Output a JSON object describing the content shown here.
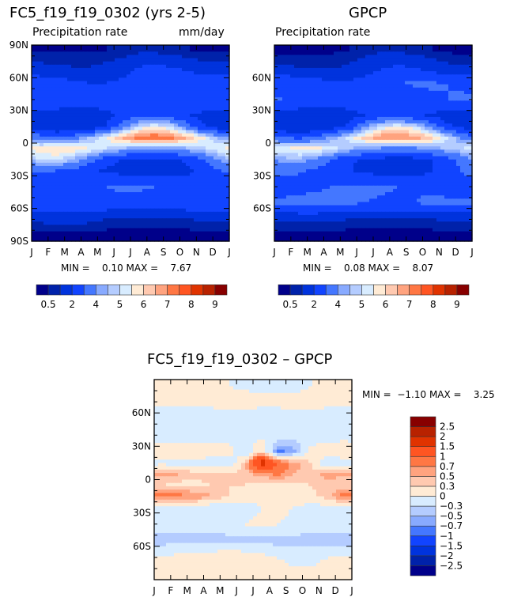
{
  "chart_data": [
    {
      "type": "heatmap",
      "title": "FC5_f19_f19_0302 (yrs 2-5)",
      "subtitle_left": "Precipitation rate",
      "subtitle_right": "mm/day",
      "stats": "MIN =    0.10 MAX =    7.67",
      "x_ticks": [
        "J",
        "F",
        "M",
        "A",
        "M",
        "J",
        "J",
        "A",
        "S",
        "O",
        "N",
        "D",
        "J"
      ],
      "y_ticks": [
        {
          "v": 90,
          "l": "90N"
        },
        {
          "v": 60,
          "l": "60N"
        },
        {
          "v": 30,
          "l": "30N"
        },
        {
          "v": 0,
          "l": "0"
        },
        {
          "v": -30,
          "l": "30S"
        },
        {
          "v": -60,
          "l": "60S"
        },
        {
          "v": -90,
          "l": "90S"
        }
      ],
      "ylim": [
        -90,
        90
      ],
      "levels": [
        0.5,
        1,
        2,
        3,
        4,
        4.5,
        5,
        5.5,
        6,
        6.5,
        7,
        7.5,
        8,
        8.5,
        9
      ],
      "colorbar_labels": [
        "0.5",
        "2",
        "4",
        "5",
        "6",
        "7",
        "8",
        "9"
      ],
      "lats": [
        85,
        70,
        55,
        40,
        25,
        15,
        5,
        -5,
        -15,
        -25,
        -40,
        -55,
        -70,
        -85
      ],
      "values": [
        [
          0.4,
          0.4,
          0.4,
          0.4,
          0.5,
          0.6,
          0.8,
          0.8,
          0.6,
          0.5,
          0.4,
          0.4
        ],
        [
          1.2,
          1.1,
          1.0,
          1.0,
          1.2,
          1.5,
          2.0,
          2.2,
          2.0,
          1.6,
          1.3,
          1.2
        ],
        [
          2.6,
          2.4,
          2.2,
          2.0,
          2.0,
          2.2,
          2.6,
          2.8,
          3.0,
          3.0,
          2.8,
          2.7
        ],
        [
          2.8,
          2.7,
          2.6,
          2.5,
          2.4,
          2.2,
          2.2,
          2.3,
          2.4,
          2.6,
          2.8,
          2.9
        ],
        [
          1.6,
          1.5,
          1.4,
          1.5,
          1.8,
          2.2,
          2.8,
          3.0,
          2.6,
          2.0,
          1.7,
          1.6
        ],
        [
          1.2,
          1.0,
          1.0,
          1.3,
          2.0,
          3.5,
          5.0,
          5.5,
          5.0,
          3.5,
          2.0,
          1.5
        ],
        [
          3.5,
          3.2,
          3.5,
          4.5,
          5.5,
          6.5,
          7.5,
          7.6,
          7.2,
          6.5,
          5.5,
          4.2
        ],
        [
          5.8,
          6.0,
          6.0,
          5.5,
          5.0,
          4.5,
          4.0,
          3.8,
          4.0,
          4.5,
          5.0,
          5.5
        ],
        [
          5.0,
          5.2,
          4.5,
          3.5,
          2.5,
          2.0,
          1.8,
          1.7,
          1.8,
          2.2,
          3.0,
          4.2
        ],
        [
          3.2,
          3.0,
          2.8,
          2.2,
          1.8,
          1.6,
          1.5,
          1.5,
          1.5,
          1.8,
          2.4,
          3.0
        ],
        [
          2.4,
          2.4,
          2.6,
          2.8,
          3.0,
          3.2,
          3.2,
          3.0,
          2.8,
          2.6,
          2.4,
          2.4
        ],
        [
          2.8,
          3.0,
          3.0,
          3.0,
          2.8,
          2.6,
          2.5,
          2.5,
          2.6,
          2.8,
          2.8,
          2.8
        ],
        [
          1.2,
          1.3,
          1.3,
          1.2,
          1.0,
          0.9,
          0.9,
          0.9,
          0.9,
          1.0,
          1.1,
          1.2
        ],
        [
          0.3,
          0.3,
          0.3,
          0.3,
          0.2,
          0.2,
          0.2,
          0.2,
          0.2,
          0.2,
          0.3,
          0.3
        ]
      ]
    },
    {
      "type": "heatmap",
      "title": "GPCP",
      "subtitle_left": "Precipitation rate",
      "stats": "MIN =    0.08 MAX =    8.07",
      "x_ticks": [
        "J",
        "F",
        "M",
        "A",
        "M",
        "J",
        "J",
        "A",
        "S",
        "O",
        "N",
        "D",
        "J"
      ],
      "y_ticks": [
        {
          "v": 60,
          "l": "60N"
        },
        {
          "v": 30,
          "l": "30N"
        },
        {
          "v": 0,
          "l": "0"
        },
        {
          "v": -30,
          "l": "30S"
        },
        {
          "v": -60,
          "l": "60S"
        }
      ],
      "ylim": [
        -90,
        90
      ],
      "levels": [
        0.5,
        1,
        2,
        3,
        4,
        4.5,
        5,
        5.5,
        6,
        6.5,
        7,
        7.5,
        8,
        8.5,
        9
      ],
      "colorbar_labels": [
        "0.5",
        "2",
        "4",
        "5",
        "6",
        "7",
        "8",
        "9"
      ],
      "lats": [
        85,
        70,
        55,
        40,
        25,
        15,
        5,
        -5,
        -15,
        -25,
        -40,
        -55,
        -70,
        -85
      ],
      "values": [
        [
          0.3,
          0.3,
          0.3,
          0.4,
          0.5,
          0.7,
          0.9,
          0.9,
          0.7,
          0.5,
          0.4,
          0.3
        ],
        [
          1.1,
          1.0,
          0.9,
          0.9,
          1.1,
          1.4,
          1.9,
          2.1,
          1.9,
          1.5,
          1.2,
          1.1
        ],
        [
          2.8,
          2.6,
          2.4,
          2.2,
          2.2,
          2.4,
          2.8,
          3.0,
          3.1,
          3.1,
          3.0,
          2.9
        ],
        [
          3.0,
          2.9,
          2.8,
          2.7,
          2.6,
          2.4,
          2.3,
          2.4,
          2.6,
          2.9,
          3.0,
          3.1
        ],
        [
          1.4,
          1.3,
          1.2,
          1.3,
          1.6,
          2.0,
          2.4,
          2.5,
          2.2,
          1.8,
          1.5,
          1.4
        ],
        [
          1.3,
          1.1,
          1.1,
          1.5,
          2.3,
          3.8,
          5.2,
          5.5,
          5.2,
          3.8,
          2.3,
          1.6
        ],
        [
          3.0,
          2.8,
          3.2,
          4.2,
          5.2,
          6.2,
          7.0,
          7.0,
          6.8,
          6.2,
          5.0,
          3.8
        ],
        [
          5.5,
          5.8,
          5.8,
          5.2,
          4.6,
          4.2,
          3.8,
          3.7,
          3.8,
          4.2,
          4.6,
          5.1
        ],
        [
          4.3,
          4.4,
          3.8,
          3.0,
          2.2,
          1.8,
          1.7,
          1.6,
          1.7,
          2.0,
          2.6,
          3.5
        ],
        [
          3.3,
          3.1,
          2.9,
          2.4,
          2.0,
          1.8,
          1.5,
          1.4,
          1.5,
          1.9,
          2.5,
          3.1
        ],
        [
          2.6,
          2.6,
          2.8,
          3.0,
          3.1,
          3.2,
          3.1,
          3.0,
          2.9,
          2.8,
          2.6,
          2.6
        ],
        [
          3.2,
          3.4,
          3.4,
          3.4,
          3.2,
          3.0,
          2.9,
          2.9,
          3.0,
          3.2,
          3.2,
          3.2
        ],
        [
          1.2,
          1.2,
          1.2,
          1.1,
          1.0,
          0.9,
          0.9,
          0.9,
          0.9,
          1.0,
          1.1,
          1.2
        ],
        [
          0.2,
          0.2,
          0.2,
          0.2,
          0.2,
          0.2,
          0.2,
          0.2,
          0.2,
          0.2,
          0.2,
          0.2
        ]
      ]
    },
    {
      "type": "heatmap",
      "title": "FC5_f19_f19_0302 – GPCP",
      "stats": "MIN =  −1.10 MAX =    3.25",
      "x_ticks": [
        "J",
        "F",
        "M",
        "A",
        "M",
        "J",
        "J",
        "A",
        "S",
        "O",
        "N",
        "D",
        "J"
      ],
      "y_ticks": [
        {
          "v": 60,
          "l": "60N"
        },
        {
          "v": 30,
          "l": "30N"
        },
        {
          "v": 0,
          "l": "0"
        },
        {
          "v": -30,
          "l": "30S"
        },
        {
          "v": -60,
          "l": "60S"
        }
      ],
      "ylim": [
        -90,
        90
      ],
      "levels": [
        -2.5,
        -2,
        -1.5,
        -1,
        -0.7,
        -0.5,
        -0.3,
        0,
        0.3,
        0.5,
        0.7,
        1,
        1.5,
        2,
        2.5
      ],
      "colorbar_labels": [
        "−2.5",
        "−2",
        "−1.5",
        "−1",
        "−0.7",
        "−0.5",
        "−0.3",
        "0",
        "0.3",
        "0.5",
        "0.7",
        "1",
        "1.5",
        "2",
        "2.5"
      ],
      "lats": [
        85,
        70,
        55,
        40,
        25,
        15,
        5,
        -5,
        -15,
        -25,
        -40,
        -55,
        -70,
        -85
      ],
      "values": [
        [
          0.1,
          0.1,
          0.1,
          0.05,
          0.0,
          -0.1,
          -0.1,
          -0.1,
          -0.1,
          0.0,
          0.0,
          0.1
        ],
        [
          0.1,
          0.1,
          0.1,
          0.1,
          0.2,
          0.2,
          0.1,
          0.1,
          0.1,
          0.1,
          0.1,
          0.1
        ],
        [
          -0.2,
          -0.2,
          -0.3,
          -0.2,
          -0.2,
          -0.2,
          -0.2,
          -0.2,
          -0.1,
          -0.1,
          -0.2,
          -0.2
        ],
        [
          -0.2,
          -0.2,
          -0.2,
          -0.2,
          -0.2,
          -0.2,
          -0.1,
          -0.1,
          -0.2,
          -0.3,
          -0.2,
          -0.1
        ],
        [
          0.2,
          0.2,
          0.2,
          0.2,
          0.2,
          -0.3,
          0.4,
          -0.8,
          -0.6,
          0.2,
          0.2,
          0.2
        ],
        [
          -0.1,
          -0.1,
          -0.1,
          -0.2,
          -0.3,
          0.4,
          1.8,
          1.0,
          0.6,
          0.3,
          -0.3,
          -0.1
        ],
        [
          0.6,
          0.5,
          0.4,
          0.4,
          0.4,
          0.4,
          0.6,
          0.8,
          0.5,
          0.4,
          0.6,
          0.5
        ],
        [
          0.3,
          0.2,
          0.2,
          0.3,
          0.3,
          0.3,
          0.2,
          0.1,
          0.2,
          0.3,
          0.4,
          0.4
        ],
        [
          0.8,
          0.8,
          0.7,
          0.5,
          0.3,
          0.2,
          0.1,
          0.1,
          0.1,
          0.2,
          0.4,
          0.8
        ],
        [
          -0.1,
          -0.1,
          -0.1,
          -0.2,
          -0.2,
          -0.2,
          0.0,
          0.1,
          0.0,
          -0.1,
          -0.1,
          -0.1
        ],
        [
          -0.2,
          -0.2,
          -0.2,
          -0.2,
          -0.1,
          0.0,
          0.1,
          0.0,
          -0.1,
          -0.2,
          -0.2,
          -0.2
        ],
        [
          -0.4,
          -0.4,
          -0.4,
          -0.4,
          -0.4,
          -0.4,
          -0.4,
          -0.4,
          -0.4,
          -0.4,
          -0.4,
          -0.4
        ],
        [
          0.0,
          0.1,
          0.2,
          0.2,
          0.3,
          0.2,
          0.1,
          0.0,
          -0.1,
          -0.1,
          0.0,
          0.0
        ],
        [
          0.1,
          0.1,
          0.1,
          0.1,
          0.1,
          0.1,
          0.1,
          0.1,
          0.1,
          0.1,
          0.1,
          0.1
        ]
      ]
    }
  ],
  "colors": [
    "#00008a",
    "#0022aa",
    "#0033dd",
    "#1144ff",
    "#4477ff",
    "#88aaff",
    "#b4ccff",
    "#d8ecff",
    "#ffebd5",
    "#ffc9b0",
    "#ffa37f",
    "#ff7744",
    "#ff5522",
    "#e03300",
    "#b82200",
    "#880000"
  ]
}
